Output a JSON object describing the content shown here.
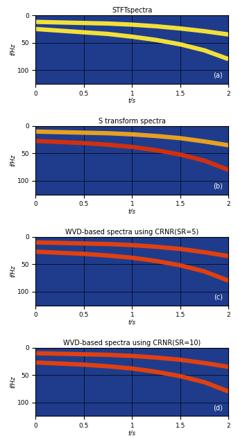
{
  "chart_data": [
    {
      "type": "line",
      "title": "STFTspectra",
      "xlabel": "t/s",
      "ylabel": "f/Hz",
      "annotation": "(a)",
      "xlim": [
        0,
        2
      ],
      "xticks": [
        0,
        0.5,
        1,
        1.5,
        2
      ],
      "ylim": [
        125,
        0
      ],
      "yticks": [
        0,
        50,
        100
      ],
      "grid": true,
      "series": [
        {
          "color": "#f2e03a",
          "x": [
            0,
            0.25,
            0.5,
            0.75,
            1,
            1.25,
            1.5,
            1.75,
            2
          ],
          "values": [
            12,
            13,
            14,
            15,
            17,
            20,
            24,
            29,
            35
          ]
        },
        {
          "color": "#f2e03a",
          "x": [
            0,
            0.25,
            0.5,
            0.75,
            1,
            1.25,
            1.5,
            1.75,
            2
          ],
          "values": [
            25,
            28,
            31,
            34,
            39,
            45,
            53,
            64,
            80
          ]
        }
      ]
    },
    {
      "type": "line",
      "title": "S transform spectra",
      "xlabel": "t/s",
      "ylabel": "f/Hz",
      "annotation": "(b)",
      "xlim": [
        0,
        2
      ],
      "xticks": [
        0,
        0.5,
        1,
        1.5,
        2
      ],
      "ylim": [
        125,
        0
      ],
      "yticks": [
        0,
        50,
        100
      ],
      "grid": true,
      "series": [
        {
          "color": "#e8a020",
          "x": [
            0,
            0.25,
            0.5,
            0.75,
            1,
            1.25,
            1.5,
            1.75,
            2
          ],
          "values": [
            10,
            11,
            12,
            13,
            15,
            18,
            22,
            28,
            35
          ]
        },
        {
          "color": "#d03010",
          "x": [
            0,
            0.25,
            0.5,
            0.75,
            1,
            1.25,
            1.5,
            1.75,
            2
          ],
          "values": [
            27,
            29,
            31,
            34,
            38,
            44,
            52,
            63,
            80
          ]
        }
      ]
    },
    {
      "type": "line",
      "title": "WVD-based spectra using CRNR(SR=5)",
      "xlabel": "t/s",
      "ylabel": "f/Hz",
      "annotation": "(c)",
      "xlim": [
        0,
        2
      ],
      "xticks": [
        0,
        0.5,
        1,
        1.5,
        2
      ],
      "ylim": [
        125,
        0
      ],
      "yticks": [
        0,
        50,
        100
      ],
      "grid": true,
      "series": [
        {
          "color": "#e04010",
          "x": [
            0,
            0.25,
            0.5,
            0.75,
            1,
            1.25,
            1.5,
            1.75,
            2
          ],
          "values": [
            10,
            11,
            12,
            13,
            15,
            18,
            22,
            28,
            35
          ]
        },
        {
          "color": "#e04010",
          "x": [
            0,
            0.25,
            0.5,
            0.75,
            1,
            1.25,
            1.5,
            1.75,
            2
          ],
          "values": [
            27,
            29,
            31,
            34,
            38,
            44,
            52,
            63,
            80
          ]
        }
      ]
    },
    {
      "type": "line",
      "title": "WVD-based spectra using CRNR(SR=10)",
      "xlabel": "t/s",
      "ylabel": "f/Hz",
      "annotation": "(d)",
      "xlim": [
        0,
        2
      ],
      "xticks": [
        0,
        0.5,
        1,
        1.5,
        2
      ],
      "ylim": [
        125,
        0
      ],
      "yticks": [
        0,
        50,
        100
      ],
      "grid": true,
      "series": [
        {
          "color": "#e04010",
          "x": [
            0,
            0.25,
            0.5,
            0.75,
            1,
            1.25,
            1.5,
            1.75,
            2
          ],
          "values": [
            10,
            11,
            12,
            13,
            15,
            18,
            22,
            28,
            35
          ]
        },
        {
          "color": "#e04010",
          "x": [
            0,
            0.25,
            0.5,
            0.75,
            1,
            1.25,
            1.5,
            1.75,
            2
          ],
          "values": [
            27,
            29,
            31,
            34,
            38,
            44,
            52,
            63,
            80
          ]
        }
      ]
    }
  ]
}
